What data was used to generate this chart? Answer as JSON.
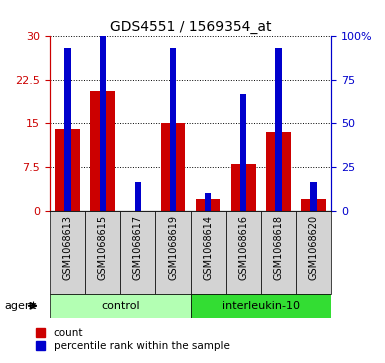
{
  "title": "GDS4551 / 1569354_at",
  "samples": [
    "GSM1068613",
    "GSM1068615",
    "GSM1068617",
    "GSM1068619",
    "GSM1068614",
    "GSM1068616",
    "GSM1068618",
    "GSM1068620"
  ],
  "count_values": [
    14.0,
    20.5,
    0.0,
    15.0,
    2.0,
    8.0,
    13.5,
    2.0
  ],
  "percentile_values": [
    28.0,
    32.0,
    5.0,
    28.0,
    3.0,
    20.0,
    28.0,
    5.0
  ],
  "ylim_left": [
    0,
    30
  ],
  "ylim_right": [
    0,
    100
  ],
  "yticks_left": [
    0,
    7.5,
    15,
    22.5,
    30
  ],
  "yticks_right": [
    0,
    25,
    50,
    75,
    100
  ],
  "ytick_labels_left": [
    "0",
    "7.5",
    "15",
    "22.5",
    "30"
  ],
  "ytick_labels_right": [
    "0",
    "25",
    "50",
    "75",
    "100%"
  ],
  "bar_color_red": "#cc0000",
  "bar_color_blue": "#0000cc",
  "group_labels": [
    "control",
    "interleukin-10"
  ],
  "group_color_light": "#b3ffb3",
  "group_color_dark": "#33dd33",
  "agent_label": "agent",
  "legend_items": [
    "count",
    "percentile rank within the sample"
  ],
  "sample_bg_color": "#d3d3d3",
  "plot_bg": "#ffffff"
}
